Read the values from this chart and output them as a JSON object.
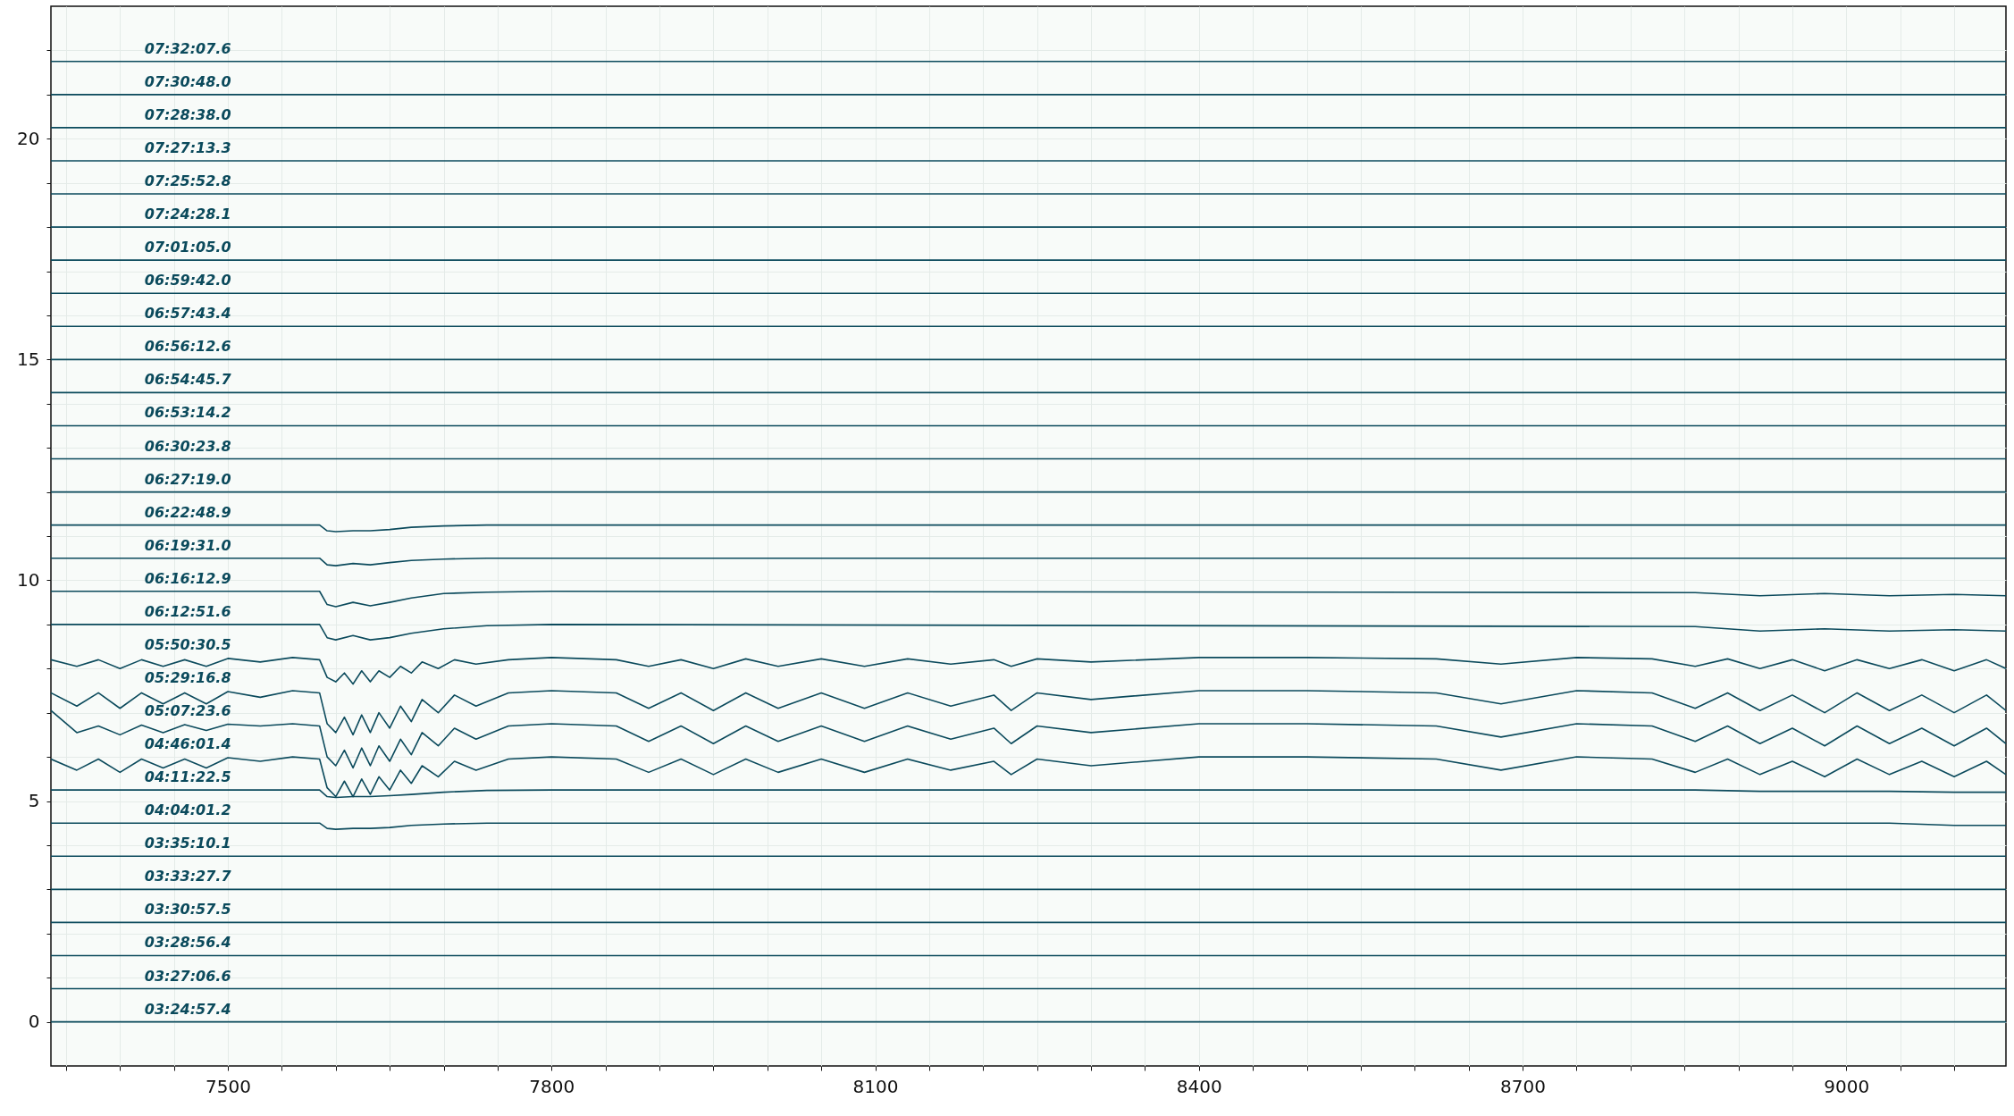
{
  "chart_data": {
    "type": "line",
    "xlim": [
      7336,
      9148
    ],
    "ylim": [
      -1,
      23
    ],
    "xticks": [
      {
        "value": 7350,
        "label": null
      },
      {
        "value": 7400,
        "label": null
      },
      {
        "value": 7450,
        "label": null
      },
      7500,
      {
        "value": 7550,
        "label": null
      },
      {
        "value": 7600,
        "label": null
      },
      {
        "value": 7650,
        "label": null
      },
      {
        "value": 7700,
        "label": null
      },
      {
        "value": 7750,
        "label": null
      },
      7800,
      {
        "value": 7850,
        "label": null
      },
      {
        "value": 7900,
        "label": null
      },
      {
        "value": 7950,
        "label": null
      },
      {
        "value": 8000,
        "label": null
      },
      {
        "value": 8050,
        "label": null
      },
      8100,
      {
        "value": 8150,
        "label": null
      },
      {
        "value": 8200,
        "label": null
      },
      {
        "value": 8250,
        "label": null
      },
      {
        "value": 8300,
        "label": null
      },
      {
        "value": 8350,
        "label": null
      },
      8400,
      {
        "value": 8450,
        "label": null
      },
      {
        "value": 8500,
        "label": null
      },
      {
        "value": 8550,
        "label": null
      },
      {
        "value": 8600,
        "label": null
      },
      {
        "value": 8650,
        "label": null
      },
      8700,
      {
        "value": 8750,
        "label": null
      },
      {
        "value": 8800,
        "label": null
      },
      {
        "value": 8850,
        "label": null
      },
      {
        "value": 8900,
        "label": null
      },
      {
        "value": 8950,
        "label": null
      },
      9000,
      {
        "value": 9050,
        "label": null
      },
      {
        "value": 9100,
        "label": null
      }
    ],
    "yticks": [
      0,
      {
        "value": 1,
        "label": null
      },
      {
        "value": 2,
        "label": null
      },
      {
        "value": 3,
        "label": null
      },
      {
        "value": 4,
        "label": null
      },
      5,
      {
        "value": 6,
        "label": null
      },
      {
        "value": 7,
        "label": null
      },
      {
        "value": 8,
        "label": null
      },
      {
        "value": 9,
        "label": null
      },
      10,
      {
        "value": 11,
        "label": null
      },
      {
        "value": 12,
        "label": null
      },
      {
        "value": 13,
        "label": null
      },
      {
        "value": 14,
        "label": null
      },
      15,
      {
        "value": 16,
        "label": null
      },
      {
        "value": 17,
        "label": null
      },
      {
        "value": 18,
        "label": null
      },
      {
        "value": 19,
        "label": null
      },
      20,
      {
        "value": 21,
        "label": null
      },
      {
        "value": 22,
        "label": null
      }
    ],
    "grid": true,
    "x": [
      7336,
      7360,
      7380,
      7400,
      7420,
      7440,
      7460,
      7480,
      7500,
      7530,
      7560,
      7585,
      7592,
      7600,
      7608,
      7616,
      7624,
      7632,
      7640,
      7650,
      7660,
      7670,
      7680,
      7695,
      7710,
      7730,
      7760,
      7800,
      7860,
      7890,
      7920,
      7950,
      7980,
      8010,
      8050,
      8090,
      8130,
      8170,
      8210,
      8226,
      8250,
      8300,
      8400,
      8500,
      8620,
      8680,
      8750,
      8820,
      8860,
      8890,
      8920,
      8950,
      8980,
      9010,
      9040,
      9070,
      9100,
      9130,
      9148
    ],
    "series": [
      {
        "name": "03:24:57.4",
        "color": "#0b4a5c",
        "x": [
          7336,
          7500,
          7800,
          8100,
          8400,
          8700,
          9000,
          9148
        ],
        "values": [
          0,
          0,
          0,
          0,
          0,
          0,
          0,
          0
        ]
      },
      {
        "name": "03:27:06.6",
        "color": "#0b4a5c",
        "x": [
          7336,
          7500,
          7800,
          8100,
          8400,
          8700,
          9000,
          9148
        ],
        "values": [
          0.75,
          0.75,
          0.75,
          0.75,
          0.75,
          0.75,
          0.75,
          0.75
        ]
      },
      {
        "name": "03:28:56.4",
        "color": "#0b4a5c",
        "x": [
          7336,
          7500,
          7800,
          8100,
          8400,
          8700,
          9000,
          9148
        ],
        "values": [
          1.5,
          1.5,
          1.5,
          1.5,
          1.5,
          1.5,
          1.5,
          1.5
        ]
      },
      {
        "name": "03:30:57.5",
        "color": "#0b4a5c",
        "x": [
          7336,
          7500,
          7800,
          8100,
          8400,
          8700,
          9000,
          9148
        ],
        "values": [
          2.25,
          2.25,
          2.25,
          2.25,
          2.25,
          2.25,
          2.25,
          2.25
        ]
      },
      {
        "name": "03:33:27.7",
        "color": "#0b4a5c",
        "x": [
          7336,
          7500,
          7800,
          8100,
          8400,
          8700,
          9000,
          9148
        ],
        "values": [
          3,
          3,
          3,
          3,
          3,
          3,
          3,
          3
        ]
      },
      {
        "name": "03:35:10.1",
        "color": "#0b4a5c",
        "x": [
          7336,
          7500,
          7800,
          8100,
          8400,
          8700,
          9000,
          9148
        ],
        "values": [
          3.75,
          3.75,
          3.75,
          3.75,
          3.75,
          3.75,
          3.75,
          3.75
        ]
      },
      {
        "name": "04:04:01.2",
        "color": "#0b4a5c",
        "x": [
          7336,
          7585,
          7592,
          7600,
          7616,
          7632,
          7650,
          7670,
          7700,
          7740,
          7800,
          8860,
          8920,
          8980,
          9040,
          9100,
          9148
        ],
        "values": [
          4.5,
          4.5,
          4.38,
          4.36,
          4.38,
          4.38,
          4.4,
          4.45,
          4.48,
          4.5,
          4.5,
          4.5,
          4.5,
          4.5,
          4.5,
          4.45,
          4.45
        ]
      },
      {
        "name": "04:11:22.5",
        "color": "#0b4a5c",
        "x": [
          7336,
          7585,
          7592,
          7600,
          7616,
          7632,
          7650,
          7670,
          7700,
          7740,
          7800,
          8860,
          8920,
          8980,
          9040,
          9100,
          9148
        ],
        "values": [
          5.25,
          5.25,
          5.1,
          5.08,
          5.1,
          5.1,
          5.12,
          5.15,
          5.2,
          5.24,
          5.25,
          5.25,
          5.22,
          5.22,
          5.22,
          5.2,
          5.2
        ]
      },
      {
        "name": "04:46:01.4",
        "color": "#0b4a5c",
        "values": [
          5.95,
          5.7,
          5.95,
          5.65,
          5.95,
          5.75,
          5.95,
          5.75,
          5.98,
          5.9,
          6,
          5.95,
          5.3,
          5.1,
          5.45,
          5.1,
          5.5,
          5.15,
          5.55,
          5.25,
          5.7,
          5.4,
          5.8,
          5.55,
          5.9,
          5.7,
          5.95,
          6,
          5.95,
          5.65,
          5.95,
          5.6,
          5.95,
          5.65,
          5.95,
          5.65,
          5.95,
          5.7,
          5.9,
          5.6,
          5.95,
          5.8,
          6,
          6,
          5.95,
          5.7,
          6,
          5.95,
          5.65,
          5.95,
          5.6,
          5.9,
          5.55,
          5.95,
          5.6,
          5.9,
          5.55,
          5.9,
          5.6
        ]
      },
      {
        "name": "05:07:23.6",
        "color": "#0b4a5c",
        "values": [
          7.05,
          6.55,
          6.7,
          6.5,
          6.72,
          6.55,
          6.73,
          6.6,
          6.74,
          6.7,
          6.75,
          6.7,
          6,
          5.8,
          6.15,
          5.75,
          6.2,
          5.8,
          6.25,
          5.9,
          6.4,
          6.05,
          6.55,
          6.25,
          6.65,
          6.4,
          6.7,
          6.75,
          6.7,
          6.35,
          6.7,
          6.3,
          6.7,
          6.35,
          6.7,
          6.35,
          6.7,
          6.4,
          6.65,
          6.3,
          6.7,
          6.55,
          6.75,
          6.75,
          6.7,
          6.45,
          6.75,
          6.7,
          6.35,
          6.7,
          6.3,
          6.65,
          6.25,
          6.7,
          6.3,
          6.65,
          6.25,
          6.65,
          6.3
        ]
      },
      {
        "name": "05:29:16.8",
        "color": "#0b4a5c",
        "values": [
          7.45,
          7.15,
          7.45,
          7.1,
          7.45,
          7.2,
          7.45,
          7.2,
          7.48,
          7.35,
          7.5,
          7.45,
          6.75,
          6.55,
          6.9,
          6.5,
          6.95,
          6.55,
          7,
          6.65,
          7.15,
          6.8,
          7.3,
          7,
          7.4,
          7.15,
          7.45,
          7.5,
          7.45,
          7.1,
          7.45,
          7.05,
          7.45,
          7.1,
          7.45,
          7.1,
          7.45,
          7.15,
          7.4,
          7.05,
          7.45,
          7.3,
          7.5,
          7.5,
          7.45,
          7.2,
          7.5,
          7.45,
          7.1,
          7.45,
          7.05,
          7.4,
          7,
          7.45,
          7.05,
          7.4,
          7,
          7.4,
          7.05
        ]
      },
      {
        "name": "05:50:30.5",
        "color": "#0b4a5c",
        "values": [
          8.2,
          8.05,
          8.2,
          8,
          8.2,
          8.05,
          8.2,
          8.05,
          8.23,
          8.15,
          8.25,
          8.2,
          7.8,
          7.7,
          7.9,
          7.65,
          7.95,
          7.7,
          7.95,
          7.8,
          8.05,
          7.9,
          8.15,
          8,
          8.2,
          8.1,
          8.2,
          8.25,
          8.2,
          8.05,
          8.2,
          8,
          8.22,
          8.05,
          8.22,
          8.05,
          8.22,
          8.1,
          8.2,
          8.05,
          8.22,
          8.15,
          8.25,
          8.25,
          8.22,
          8.1,
          8.25,
          8.22,
          8.05,
          8.22,
          8,
          8.2,
          7.95,
          8.2,
          8,
          8.2,
          7.95,
          8.2,
          8
        ]
      },
      {
        "name": "06:12:51.6",
        "color": "#0b4a5c",
        "x": [
          7336,
          7585,
          7592,
          7600,
          7616,
          7632,
          7650,
          7670,
          7700,
          7740,
          7800,
          8860,
          8920,
          8980,
          9040,
          9100,
          9148
        ],
        "values": [
          9,
          9,
          8.7,
          8.65,
          8.75,
          8.65,
          8.7,
          8.8,
          8.9,
          8.97,
          9,
          8.95,
          8.85,
          8.9,
          8.85,
          8.88,
          8.85
        ]
      },
      {
        "name": "06:16:12.9",
        "color": "#0b4a5c",
        "x": [
          7336,
          7585,
          7592,
          7600,
          7616,
          7632,
          7650,
          7670,
          7700,
          7740,
          7800,
          8860,
          8920,
          8980,
          9040,
          9100,
          9148
        ],
        "values": [
          9.75,
          9.75,
          9.45,
          9.4,
          9.5,
          9.42,
          9.5,
          9.6,
          9.7,
          9.73,
          9.75,
          9.72,
          9.65,
          9.7,
          9.65,
          9.68,
          9.65
        ]
      },
      {
        "name": "06:19:31.0",
        "color": "#0b4a5c",
        "x": [
          7336,
          7585,
          7592,
          7600,
          7616,
          7632,
          7650,
          7670,
          7700,
          7740,
          7800,
          8860,
          8920,
          8980,
          9040,
          9100,
          9148
        ],
        "values": [
          10.5,
          10.5,
          10.35,
          10.33,
          10.38,
          10.35,
          10.4,
          10.45,
          10.48,
          10.5,
          10.5,
          10.5,
          10.5,
          10.5,
          10.5,
          10.5,
          10.5
        ]
      },
      {
        "name": "06:22:48.9",
        "color": "#0b4a5c",
        "x": [
          7336,
          7585,
          7592,
          7600,
          7616,
          7632,
          7650,
          7670,
          7700,
          7740,
          7800,
          8860,
          8920,
          8980,
          9040,
          9100,
          9148
        ],
        "values": [
          11.25,
          11.25,
          11.12,
          11.1,
          11.12,
          11.12,
          11.15,
          11.2,
          11.23,
          11.25,
          11.25,
          11.25,
          11.25,
          11.25,
          11.25,
          11.25,
          11.25
        ]
      },
      {
        "name": "06:27:19.0",
        "color": "#0b4a5c",
        "x": [
          7336,
          7500,
          7800,
          8100,
          8400,
          8700,
          9000,
          9148
        ],
        "values": [
          12,
          12,
          12,
          12,
          12,
          12,
          12,
          12
        ]
      },
      {
        "name": "06:30:23.8",
        "color": "#0b4a5c",
        "x": [
          7336,
          7500,
          7800,
          8100,
          8400,
          8700,
          9000,
          9148
        ],
        "values": [
          12.75,
          12.75,
          12.75,
          12.75,
          12.75,
          12.75,
          12.75,
          12.75
        ]
      },
      {
        "name": "06:53:14.2",
        "color": "#0b4a5c",
        "x": [
          7336,
          7500,
          7800,
          8100,
          8400,
          8700,
          9000,
          9148
        ],
        "values": [
          13.5,
          13.5,
          13.5,
          13.5,
          13.5,
          13.5,
          13.5,
          13.5
        ]
      },
      {
        "name": "06:54:45.7",
        "color": "#0b4a5c",
        "x": [
          7336,
          7500,
          7800,
          8100,
          8400,
          8700,
          9000,
          9148
        ],
        "values": [
          14.25,
          14.25,
          14.25,
          14.25,
          14.25,
          14.25,
          14.25,
          14.25
        ]
      },
      {
        "name": "06:56:12.6",
        "color": "#0b4a5c",
        "x": [
          7336,
          7500,
          7800,
          8100,
          8400,
          8700,
          9000,
          9148
        ],
        "values": [
          15,
          15,
          15,
          15,
          15,
          15,
          15,
          15
        ]
      },
      {
        "name": "06:57:43.4",
        "color": "#0b4a5c",
        "x": [
          7336,
          7500,
          7800,
          8100,
          8400,
          8700,
          9000,
          9148
        ],
        "values": [
          15.75,
          15.75,
          15.75,
          15.75,
          15.75,
          15.75,
          15.75,
          15.75
        ]
      },
      {
        "name": "06:59:42.0",
        "color": "#0b4a5c",
        "x": [
          7336,
          7500,
          7800,
          8100,
          8400,
          8700,
          9000,
          9148
        ],
        "values": [
          16.5,
          16.5,
          16.5,
          16.5,
          16.5,
          16.5,
          16.5,
          16.5
        ]
      },
      {
        "name": "07:01:05.0",
        "color": "#0b4a5c",
        "x": [
          7336,
          7500,
          7800,
          8100,
          8400,
          8700,
          9000,
          9148
        ],
        "values": [
          17.25,
          17.25,
          17.25,
          17.25,
          17.25,
          17.25,
          17.25,
          17.25
        ]
      },
      {
        "name": "07:24:28.1",
        "color": "#0b4a5c",
        "x": [
          7336,
          7500,
          7800,
          8100,
          8400,
          8700,
          9000,
          9148
        ],
        "values": [
          18,
          18,
          18,
          18,
          18,
          18,
          18,
          18
        ]
      },
      {
        "name": "07:25:52.8",
        "color": "#0b4a5c",
        "x": [
          7336,
          7500,
          7800,
          8100,
          8400,
          8700,
          9000,
          9148
        ],
        "values": [
          18.75,
          18.75,
          18.75,
          18.75,
          18.75,
          18.75,
          18.75,
          18.75
        ]
      },
      {
        "name": "07:27:13.3",
        "color": "#0b4a5c",
        "x": [
          7336,
          7500,
          7800,
          8100,
          8400,
          8700,
          9000,
          9148
        ],
        "values": [
          19.5,
          19.5,
          19.5,
          19.5,
          19.5,
          19.5,
          19.5,
          19.5
        ]
      },
      {
        "name": "07:28:38.0",
        "color": "#0b4a5c",
        "x": [
          7336,
          7500,
          7800,
          8100,
          8400,
          8700,
          9000,
          9148
        ],
        "values": [
          20.25,
          20.25,
          20.25,
          20.25,
          20.25,
          20.25,
          20.25,
          20.25
        ]
      },
      {
        "name": "07:30:48.0",
        "color": "#0b4a5c",
        "x": [
          7336,
          7500,
          7800,
          8100,
          8400,
          8700,
          9000,
          9148
        ],
        "values": [
          21,
          21,
          21,
          21,
          21,
          21,
          21,
          21
        ]
      },
      {
        "name": "07:32:07.6",
        "color": "#0b4a5c",
        "x": [
          7336,
          7500,
          7800,
          8100,
          8400,
          8700,
          9000,
          9148
        ],
        "values": [
          21.75,
          21.75,
          21.75,
          21.75,
          21.75,
          21.75,
          21.75,
          21.75
        ]
      }
    ]
  }
}
